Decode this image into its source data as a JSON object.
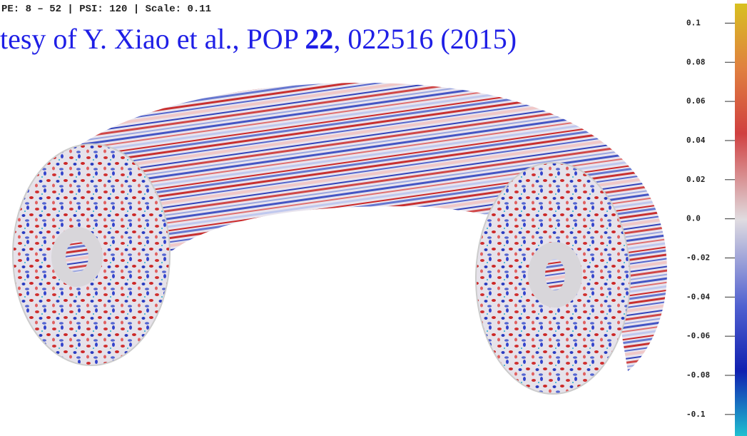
{
  "info": "PE: 8 – 52 | PSI: 120 | Scale: 0.11",
  "title": {
    "before": "tesy of Y. Xiao et al., POP ",
    "bold": "22",
    "after": ", 022516 (2015)"
  },
  "colorbar": {
    "lim": [
      -0.111,
      0.11
    ],
    "ticks": [
      0.1,
      0.08,
      0.06,
      0.04,
      0.02,
      {
        "value": 0,
        "label": "0.0"
      },
      -0.02,
      -0.04,
      -0.06,
      -0.08,
      -0.1
    ]
  }
}
